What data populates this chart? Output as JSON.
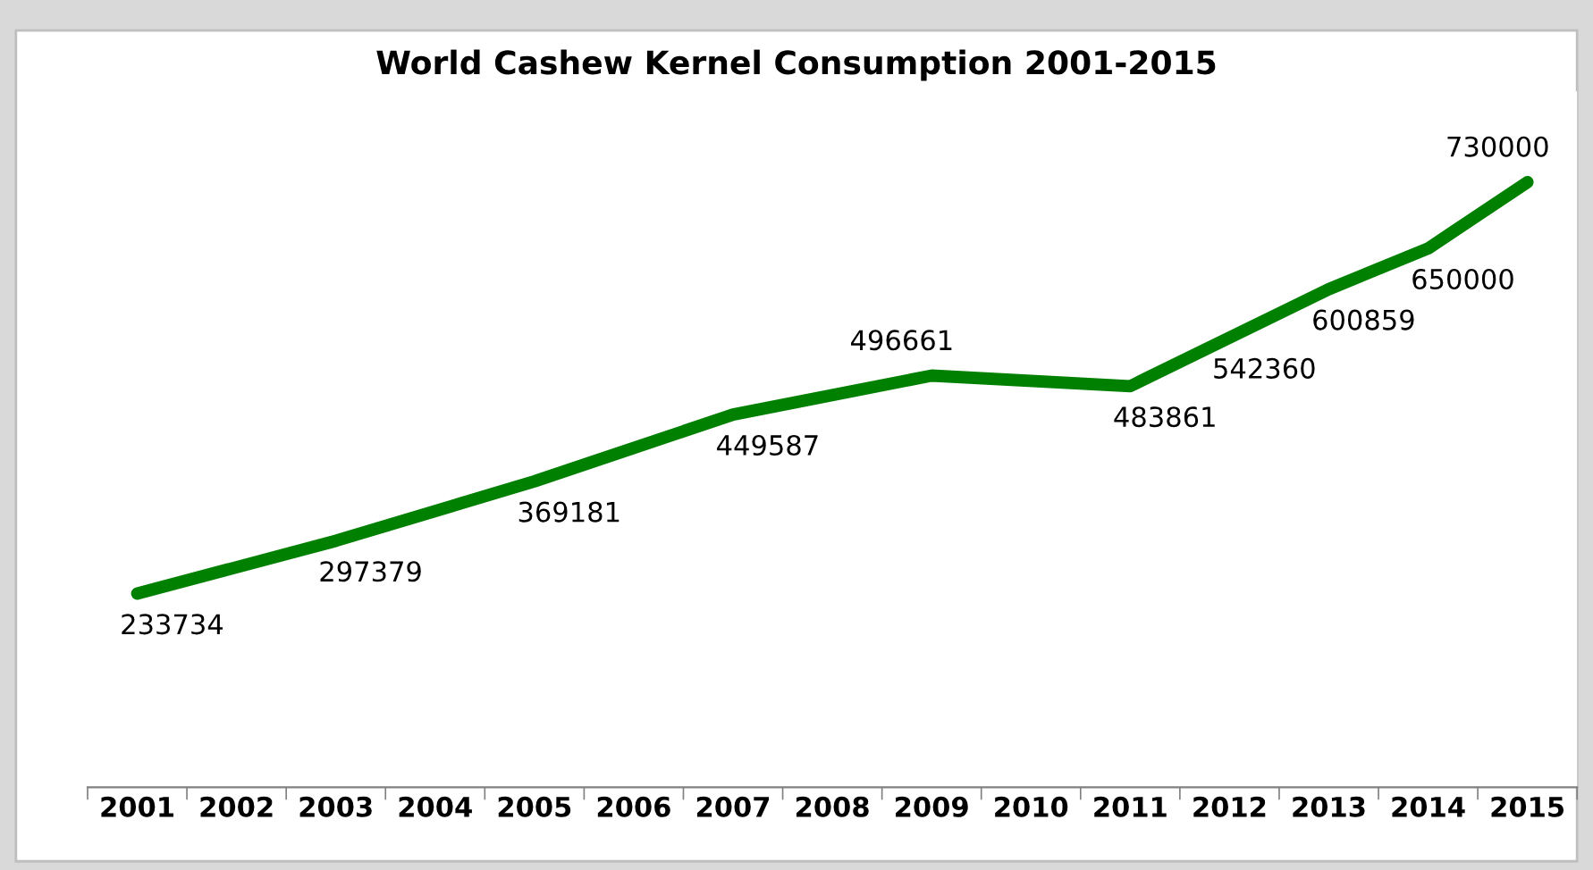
{
  "chart_data": {
    "type": "line",
    "title": "World Cashew Kernel Consumption 2001-2015",
    "categories": [
      "2001",
      "2002",
      "2003",
      "2004",
      "2005",
      "2006",
      "2007",
      "2008",
      "2009",
      "2010",
      "2011",
      "2012",
      "2013",
      "2014",
      "2015"
    ],
    "series": [
      {
        "color": "#008000",
        "values": [
          233734,
          null,
          297379,
          null,
          369181,
          null,
          449587,
          null,
          496661,
          null,
          483861,
          542360,
          600859,
          650000,
          730000
        ]
      }
    ],
    "data_labels": true,
    "grid": false,
    "legend": false,
    "marker": "none",
    "line_style": "solid",
    "tick_labels": "x"
  }
}
